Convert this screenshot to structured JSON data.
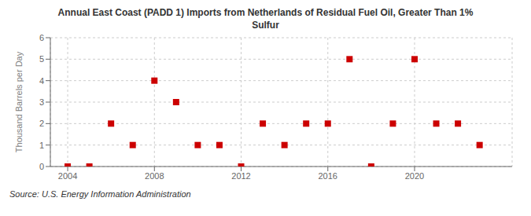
{
  "chart_data": {
    "type": "scatter",
    "title": "Annual East Coast (PADD 1) Imports from Netherlands of Residual Fuel Oil, Greater Than 1%\nSulfur",
    "ylabel": "Thousand Barrels per Day",
    "source": "Source: U.S. Energy Information Administration",
    "x": [
      2004,
      2005,
      2006,
      2007,
      2008,
      2009,
      2010,
      2011,
      2012,
      2013,
      2014,
      2015,
      2016,
      2017,
      2018,
      2019,
      2020,
      2021,
      2022,
      2023
    ],
    "values": [
      0,
      0,
      2,
      1,
      4,
      3,
      1,
      1,
      0,
      2,
      1,
      2,
      2,
      5,
      0,
      2,
      5,
      2,
      2,
      1
    ],
    "color": "#cc0000",
    "marker": "square",
    "xlim": [
      2003.2,
      2024.5
    ],
    "xticks": [
      2004,
      2008,
      2012,
      2016,
      2020
    ],
    "ylim": [
      0,
      6
    ],
    "yticks": [
      0,
      1,
      2,
      3,
      4,
      5,
      6
    ],
    "grid": true
  }
}
